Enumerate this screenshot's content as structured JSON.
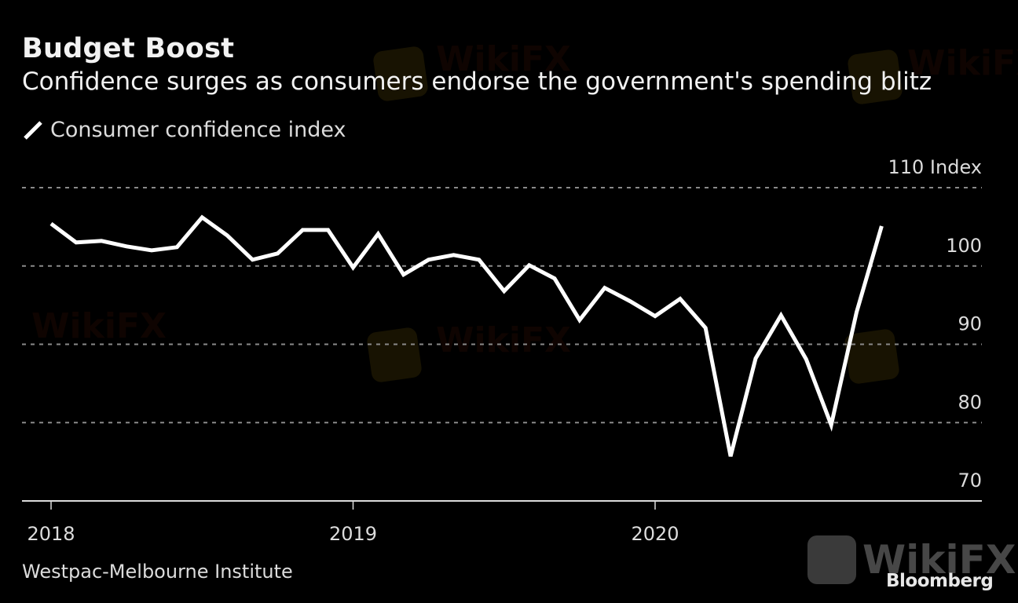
{
  "header": {
    "title": "Budget Boost",
    "subtitle": "Confidence surges as consumers endorse the government's spending blitz"
  },
  "legend": {
    "items": [
      {
        "label": "Consumer confidence index",
        "icon": "line-swatch-icon",
        "color": "#ffffff"
      }
    ]
  },
  "footer": {
    "source": "Westpac-Melbourne Institute",
    "brand": "Bloomberg",
    "watermark": "WikiFX"
  },
  "chart_data": {
    "type": "line",
    "title": "Budget Boost",
    "subtitle": "Confidence surges as consumers endorse the government's spending blitz",
    "xlabel": "",
    "ylabel": "Index",
    "y_unit_label": "Index",
    "ylim": [
      70,
      110
    ],
    "yticks": [
      70,
      80,
      90,
      100,
      110
    ],
    "xticks": [
      {
        "value": 2018.0,
        "label": "2018"
      },
      {
        "value": 2019.0,
        "label": "2019"
      },
      {
        "value": 2020.0,
        "label": "2020"
      }
    ],
    "xlim": [
      2017.9,
      2020.92
    ],
    "grid": true,
    "legend_position": "top-left",
    "series": [
      {
        "name": "Consumer confidence index",
        "color": "#ffffff",
        "x": [
          2018.0,
          2018.083,
          2018.167,
          2018.25,
          2018.333,
          2018.417,
          2018.5,
          2018.583,
          2018.667,
          2018.75,
          2018.833,
          2018.917,
          2019.0,
          2019.083,
          2019.167,
          2019.25,
          2019.333,
          2019.417,
          2019.5,
          2019.583,
          2019.667,
          2019.75,
          2019.833,
          2019.917,
          2020.0,
          2020.083,
          2020.167,
          2020.25,
          2020.333,
          2020.417,
          2020.5,
          2020.583,
          2020.667,
          2020.75
        ],
        "values": [
          105.4,
          103.0,
          103.2,
          102.5,
          102.0,
          102.4,
          106.2,
          103.9,
          100.8,
          101.6,
          104.6,
          104.6,
          99.8,
          104.1,
          98.9,
          100.8,
          101.4,
          100.8,
          96.8,
          100.1,
          98.4,
          93.1,
          97.2,
          95.5,
          93.6,
          95.8,
          92.1,
          75.7,
          88.2,
          93.7,
          88.1,
          79.7,
          94.1,
          105.1
        ]
      }
    ]
  }
}
